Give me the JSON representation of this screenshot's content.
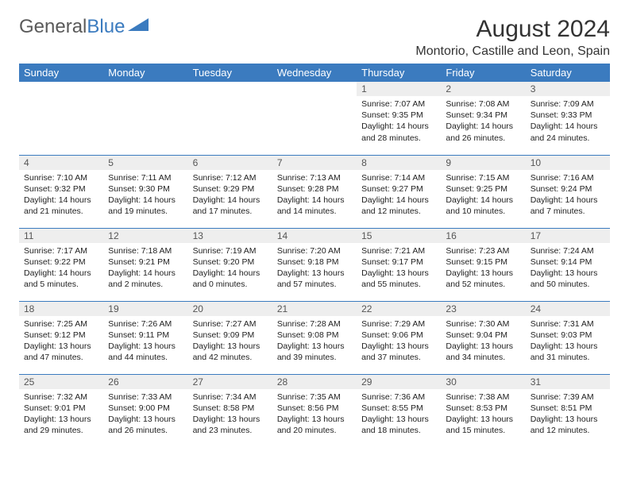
{
  "logo": {
    "text_gray": "General",
    "text_blue": "Blue"
  },
  "title": "August 2024",
  "location": "Montorio, Castille and Leon, Spain",
  "colors": {
    "header_bg": "#3b7bbf",
    "header_text": "#ffffff",
    "daynum_bg": "#eeeeee",
    "divider": "#3b7bbf",
    "text": "#222222"
  },
  "weekdays": [
    "Sunday",
    "Monday",
    "Tuesday",
    "Wednesday",
    "Thursday",
    "Friday",
    "Saturday"
  ],
  "weeks": [
    [
      null,
      null,
      null,
      null,
      {
        "n": "1",
        "sr": "7:07 AM",
        "ss": "9:35 PM",
        "dl": "14 hours and 28 minutes."
      },
      {
        "n": "2",
        "sr": "7:08 AM",
        "ss": "9:34 PM",
        "dl": "14 hours and 26 minutes."
      },
      {
        "n": "3",
        "sr": "7:09 AM",
        "ss": "9:33 PM",
        "dl": "14 hours and 24 minutes."
      }
    ],
    [
      {
        "n": "4",
        "sr": "7:10 AM",
        "ss": "9:32 PM",
        "dl": "14 hours and 21 minutes."
      },
      {
        "n": "5",
        "sr": "7:11 AM",
        "ss": "9:30 PM",
        "dl": "14 hours and 19 minutes."
      },
      {
        "n": "6",
        "sr": "7:12 AM",
        "ss": "9:29 PM",
        "dl": "14 hours and 17 minutes."
      },
      {
        "n": "7",
        "sr": "7:13 AM",
        "ss": "9:28 PM",
        "dl": "14 hours and 14 minutes."
      },
      {
        "n": "8",
        "sr": "7:14 AM",
        "ss": "9:27 PM",
        "dl": "14 hours and 12 minutes."
      },
      {
        "n": "9",
        "sr": "7:15 AM",
        "ss": "9:25 PM",
        "dl": "14 hours and 10 minutes."
      },
      {
        "n": "10",
        "sr": "7:16 AM",
        "ss": "9:24 PM",
        "dl": "14 hours and 7 minutes."
      }
    ],
    [
      {
        "n": "11",
        "sr": "7:17 AM",
        "ss": "9:22 PM",
        "dl": "14 hours and 5 minutes."
      },
      {
        "n": "12",
        "sr": "7:18 AM",
        "ss": "9:21 PM",
        "dl": "14 hours and 2 minutes."
      },
      {
        "n": "13",
        "sr": "7:19 AM",
        "ss": "9:20 PM",
        "dl": "14 hours and 0 minutes."
      },
      {
        "n": "14",
        "sr": "7:20 AM",
        "ss": "9:18 PM",
        "dl": "13 hours and 57 minutes."
      },
      {
        "n": "15",
        "sr": "7:21 AM",
        "ss": "9:17 PM",
        "dl": "13 hours and 55 minutes."
      },
      {
        "n": "16",
        "sr": "7:23 AM",
        "ss": "9:15 PM",
        "dl": "13 hours and 52 minutes."
      },
      {
        "n": "17",
        "sr": "7:24 AM",
        "ss": "9:14 PM",
        "dl": "13 hours and 50 minutes."
      }
    ],
    [
      {
        "n": "18",
        "sr": "7:25 AM",
        "ss": "9:12 PM",
        "dl": "13 hours and 47 minutes."
      },
      {
        "n": "19",
        "sr": "7:26 AM",
        "ss": "9:11 PM",
        "dl": "13 hours and 44 minutes."
      },
      {
        "n": "20",
        "sr": "7:27 AM",
        "ss": "9:09 PM",
        "dl": "13 hours and 42 minutes."
      },
      {
        "n": "21",
        "sr": "7:28 AM",
        "ss": "9:08 PM",
        "dl": "13 hours and 39 minutes."
      },
      {
        "n": "22",
        "sr": "7:29 AM",
        "ss": "9:06 PM",
        "dl": "13 hours and 37 minutes."
      },
      {
        "n": "23",
        "sr": "7:30 AM",
        "ss": "9:04 PM",
        "dl": "13 hours and 34 minutes."
      },
      {
        "n": "24",
        "sr": "7:31 AM",
        "ss": "9:03 PM",
        "dl": "13 hours and 31 minutes."
      }
    ],
    [
      {
        "n": "25",
        "sr": "7:32 AM",
        "ss": "9:01 PM",
        "dl": "13 hours and 29 minutes."
      },
      {
        "n": "26",
        "sr": "7:33 AM",
        "ss": "9:00 PM",
        "dl": "13 hours and 26 minutes."
      },
      {
        "n": "27",
        "sr": "7:34 AM",
        "ss": "8:58 PM",
        "dl": "13 hours and 23 minutes."
      },
      {
        "n": "28",
        "sr": "7:35 AM",
        "ss": "8:56 PM",
        "dl": "13 hours and 20 minutes."
      },
      {
        "n": "29",
        "sr": "7:36 AM",
        "ss": "8:55 PM",
        "dl": "13 hours and 18 minutes."
      },
      {
        "n": "30",
        "sr": "7:38 AM",
        "ss": "8:53 PM",
        "dl": "13 hours and 15 minutes."
      },
      {
        "n": "31",
        "sr": "7:39 AM",
        "ss": "8:51 PM",
        "dl": "13 hours and 12 minutes."
      }
    ]
  ],
  "labels": {
    "sunrise": "Sunrise:",
    "sunset": "Sunset:",
    "daylight": "Daylight:"
  }
}
